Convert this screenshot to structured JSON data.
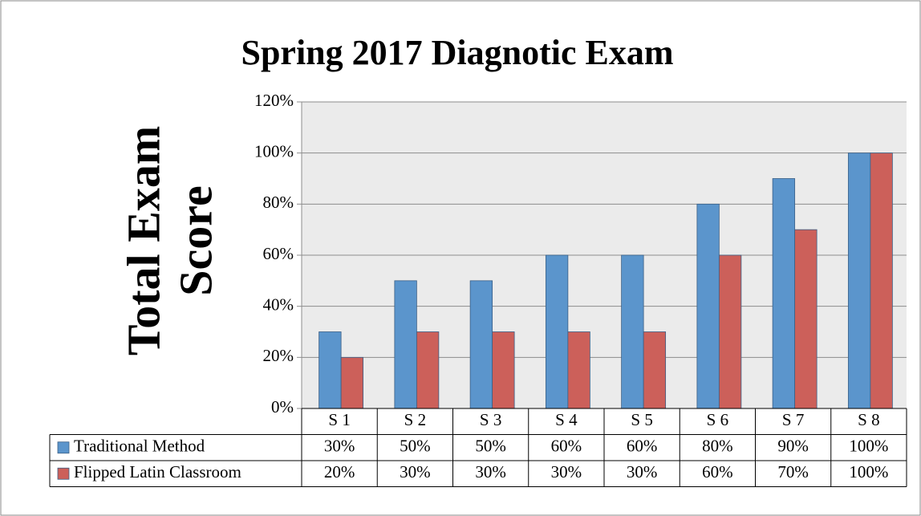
{
  "chart_data": {
    "type": "bar",
    "title": "Spring 2017 Diagnotic Exam",
    "y_label": [
      "Total Exam",
      "Score"
    ],
    "categories": [
      "S 1",
      "S 2",
      "S 3",
      "S 4",
      "S 5",
      "S 6",
      "S 7",
      "S 8"
    ],
    "series": [
      {
        "name": "Traditional Method",
        "color": "#5b95cc",
        "values": [
          30,
          50,
          50,
          60,
          60,
          80,
          90,
          100
        ],
        "value_labels": [
          "30%",
          "50%",
          "50%",
          "60%",
          "60%",
          "80%",
          "90%",
          "100%"
        ]
      },
      {
        "name": "Flipped Latin Classroom",
        "color": "#cc605a",
        "values": [
          20,
          30,
          30,
          30,
          30,
          60,
          70,
          100
        ],
        "value_labels": [
          "20%",
          "30%",
          "30%",
          "30%",
          "30%",
          "60%",
          "70%",
          "100%"
        ]
      }
    ],
    "ylim": [
      0,
      120
    ],
    "yticks": [
      {
        "value": 0,
        "label": "0%"
      },
      {
        "value": 20,
        "label": "20%"
      },
      {
        "value": 40,
        "label": "40%"
      },
      {
        "value": 60,
        "label": "60%"
      },
      {
        "value": 80,
        "label": "80%"
      },
      {
        "value": 100,
        "label": "100%"
      },
      {
        "value": 120,
        "label": "120%"
      }
    ],
    "grid": true,
    "data_table": true
  }
}
